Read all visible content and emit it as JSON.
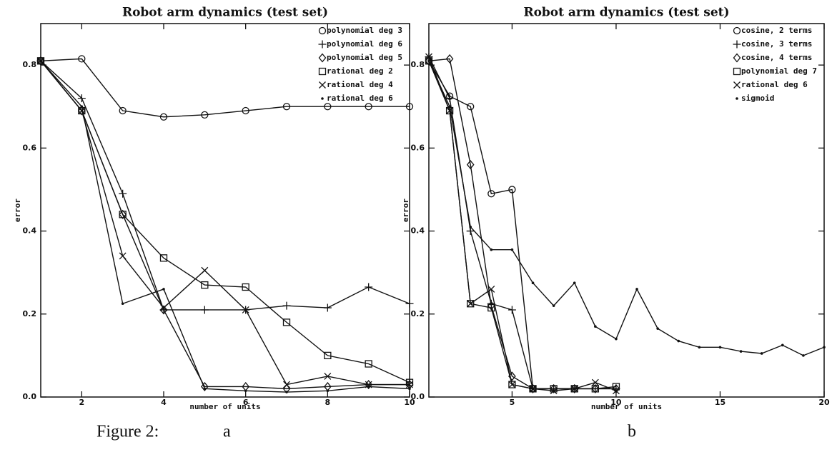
{
  "chart_data": [
    {
      "type": "line",
      "title": "Robot arm dynamics (test set)",
      "xlabel": "number of units",
      "ylabel": "error",
      "x": [
        1,
        2,
        3,
        4,
        5,
        6,
        7,
        8,
        9,
        10
      ],
      "xlim": [
        1,
        10
      ],
      "xticks": [
        2,
        4,
        6,
        8,
        10
      ],
      "ylim": [
        0,
        0.9
      ],
      "yticks": [
        {
          "value": 0,
          "label": "0.0"
        },
        0.2,
        0.4,
        0.6,
        0.8
      ],
      "legend": "upper right",
      "series": [
        {
          "name": "polynomial deg 3",
          "marker": "circle",
          "color": "#111111",
          "values": [
            0.81,
            0.815,
            0.69,
            0.675,
            0.68,
            0.69,
            0.7,
            0.7,
            0.7,
            0.7
          ]
        },
        {
          "name": "polynomial deg 6",
          "marker": "plus",
          "color": "#111111",
          "values": [
            0.81,
            0.72,
            0.49,
            0.21,
            0.21,
            0.21,
            0.22,
            0.215,
            0.265,
            0.225
          ]
        },
        {
          "name": "polynomial deg 5",
          "marker": "diamond",
          "color": "#111111",
          "values": [
            0.81,
            0.69,
            0.44,
            0.21,
            0.025,
            0.025,
            0.02,
            0.025,
            0.03,
            0.03
          ]
        },
        {
          "name": "rational deg 2",
          "marker": "square",
          "color": "#111111",
          "values": [
            0.81,
            0.69,
            0.44,
            0.335,
            0.27,
            0.265,
            0.18,
            0.1,
            0.08,
            0.035
          ]
        },
        {
          "name": "rational deg 4",
          "marker": "x",
          "color": "#111111",
          "values": [
            0.81,
            0.69,
            0.34,
            0.215,
            0.305,
            0.21,
            0.03,
            0.05,
            0.03,
            0.03
          ]
        },
        {
          "name": "rational deg 6",
          "marker": "dot",
          "color": "#111111",
          "values": [
            0.81,
            0.7,
            0.225,
            0.26,
            0.02,
            0.015,
            0.012,
            0.015,
            0.025,
            0.02
          ]
        }
      ]
    },
    {
      "type": "line",
      "title": "Robot arm dynamics (test set)",
      "xlabel": "number of units",
      "ylabel": "error",
      "x": [
        1,
        2,
        3,
        4,
        5,
        6,
        7,
        8,
        9,
        10,
        11,
        12,
        13,
        14,
        15,
        16,
        17,
        18,
        19,
        20
      ],
      "xlim": [
        1,
        20
      ],
      "xticks": [
        5,
        10,
        15,
        20
      ],
      "ylim": [
        0,
        0.9
      ],
      "yticks": [
        {
          "value": 0,
          "label": "0.0"
        },
        0.2,
        0.4,
        0.6,
        0.8
      ],
      "legend": "upper right",
      "series": [
        {
          "name": "cosine, 2 terms",
          "marker": "circle",
          "color": "#111111",
          "values": [
            0.81,
            0.725,
            0.7,
            0.49,
            0.5,
            0.02,
            null,
            null,
            null,
            null,
            null,
            null,
            null,
            null,
            null,
            null,
            null,
            null,
            null,
            null
          ]
        },
        {
          "name": "cosine, 3 terms",
          "marker": "plus",
          "color": "#111111",
          "values": [
            0.82,
            0.72,
            0.4,
            0.225,
            0.21,
            0.02,
            0.02,
            0.02,
            0.02,
            0.02,
            null,
            null,
            null,
            null,
            null,
            null,
            null,
            null,
            null,
            null
          ]
        },
        {
          "name": "cosine, 4 terms",
          "marker": "diamond",
          "color": "#111111",
          "values": [
            0.81,
            0.815,
            0.56,
            0.22,
            0.05,
            0.02,
            0.02,
            0.02,
            0.02,
            0.02,
            null,
            null,
            null,
            null,
            null,
            null,
            null,
            null,
            null,
            null
          ]
        },
        {
          "name": "polynomial deg 7",
          "marker": "square",
          "color": "#111111",
          "values": [
            0.81,
            0.69,
            0.225,
            0.215,
            0.03,
            0.02,
            0.02,
            0.02,
            0.02,
            0.025,
            null,
            null,
            null,
            null,
            null,
            null,
            null,
            null,
            null,
            null
          ]
        },
        {
          "name": "rational deg 6",
          "marker": "x",
          "color": "#111111",
          "values": [
            0.82,
            0.69,
            0.225,
            0.26,
            0.03,
            0.02,
            0.015,
            0.02,
            0.035,
            0.015,
            null,
            null,
            null,
            null,
            null,
            null,
            null,
            null,
            null,
            null
          ]
        },
        {
          "name": "sigmoid",
          "marker": "dot",
          "color": "#111111",
          "values": [
            0.81,
            0.7,
            0.41,
            0.355,
            0.355,
            0.275,
            0.22,
            0.275,
            0.17,
            0.14,
            0.26,
            0.165,
            0.135,
            0.12,
            0.12,
            0.11,
            0.105,
            0.125,
            0.1,
            0.12
          ]
        }
      ]
    }
  ],
  "caption": {
    "label": "Figure 2:",
    "panels": [
      "a",
      "b"
    ]
  }
}
